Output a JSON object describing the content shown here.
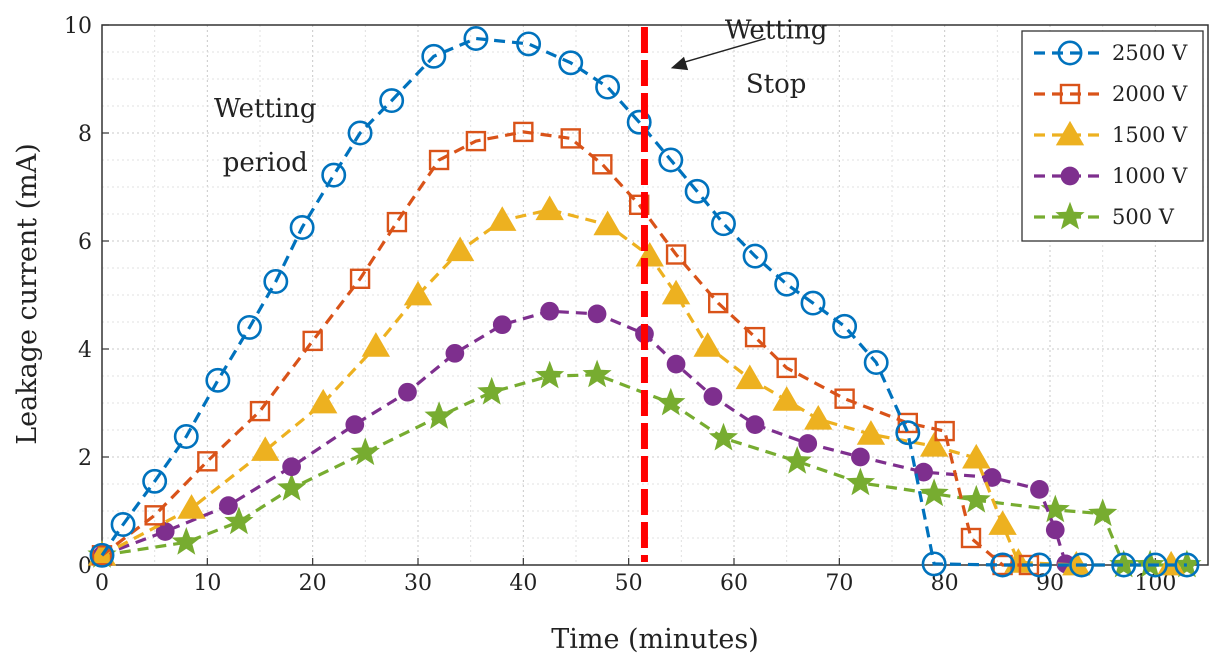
{
  "chart_data": {
    "type": "line",
    "xlabel": "Time (minutes)",
    "ylabel": "Leakage current (mA)",
    "xlim": [
      0,
      105
    ],
    "ylim": [
      0,
      10
    ],
    "xticks": [
      0,
      10,
      20,
      30,
      40,
      50,
      60,
      70,
      80,
      90,
      100
    ],
    "yticks": [
      0,
      2,
      4,
      6,
      8,
      10
    ],
    "grid": true,
    "legend_position": "top-right",
    "vertical_marker": {
      "x": 51.5,
      "color": "#ff0000",
      "style": "dashed"
    },
    "annotations": [
      {
        "id": "wetting",
        "text": "Wetting",
        "x": 15.5,
        "y": 8.3
      },
      {
        "id": "period",
        "text": "period",
        "x": 15.5,
        "y": 7.3
      },
      {
        "id": "wetting2",
        "text": "Wetting",
        "x": 64,
        "y": 9.75
      },
      {
        "id": "stop",
        "text": "Stop",
        "x": 64,
        "y": 8.75
      }
    ],
    "arrow": {
      "from": [
        63,
        9.75
      ],
      "to": [
        54,
        9.2
      ]
    },
    "series": [
      {
        "name": "2500 V",
        "color": "#0072BD",
        "marker": "circle-open",
        "x": [
          0,
          2,
          5,
          8,
          11,
          14,
          16.5,
          19,
          22,
          24.5,
          27.5,
          31.5,
          35.5,
          40.5,
          44.5,
          48,
          51,
          54,
          56.5,
          59,
          62,
          65,
          67.5,
          70.5,
          73.5,
          76.5,
          79,
          85.5,
          89,
          93,
          97,
          100,
          103
        ],
        "y": [
          0.18,
          0.75,
          1.55,
          2.38,
          3.42,
          4.4,
          5.25,
          6.25,
          7.22,
          8.0,
          8.6,
          9.42,
          9.75,
          9.65,
          9.3,
          8.85,
          8.2,
          7.5,
          6.92,
          6.32,
          5.72,
          5.2,
          4.85,
          4.42,
          3.75,
          2.45,
          0.02,
          0.0,
          0.0,
          0.0,
          0.0,
          0.0,
          0.0
        ]
      },
      {
        "name": "2000 V",
        "color": "#D95319",
        "marker": "square-open",
        "x": [
          0,
          5,
          10,
          15,
          20,
          24.5,
          28,
          32,
          35.5,
          40,
          44.5,
          47.5,
          51,
          54.5,
          58.5,
          62,
          65,
          70.5,
          76.5,
          80,
          82.5,
          85.5,
          88
        ],
        "y": [
          0.18,
          0.92,
          1.92,
          2.85,
          4.15,
          5.3,
          6.35,
          7.5,
          7.85,
          8.02,
          7.9,
          7.42,
          6.67,
          5.75,
          4.85,
          4.22,
          3.65,
          3.08,
          2.63,
          2.48,
          0.5,
          0.0,
          0.0
        ]
      },
      {
        "name": "1500 V",
        "color": "#EDB120",
        "marker": "triangle",
        "x": [
          0,
          8.5,
          15.5,
          21,
          26,
          30,
          34,
          38,
          42.5,
          48,
          52,
          54.5,
          57.5,
          61.5,
          65,
          68,
          73,
          79,
          83,
          85.5,
          87,
          92.5,
          101.5
        ],
        "y": [
          0.18,
          1.05,
          2.12,
          3.0,
          4.05,
          5.0,
          5.82,
          6.38,
          6.58,
          6.3,
          5.72,
          5.02,
          4.05,
          3.45,
          3.05,
          2.7,
          2.42,
          2.2,
          1.98,
          0.75,
          0.05,
          0.0,
          0.0
        ]
      },
      {
        "name": "1000 V",
        "color": "#7E2F8E",
        "marker": "circle-filled",
        "x": [
          0,
          6,
          12,
          18,
          24,
          29,
          33.5,
          38,
          42.5,
          47,
          51.5,
          54.5,
          58,
          62,
          67,
          72,
          78,
          84.5,
          89,
          90.5,
          91.5
        ],
        "y": [
          0.18,
          0.62,
          1.1,
          1.82,
          2.6,
          3.2,
          3.92,
          4.45,
          4.7,
          4.65,
          4.28,
          3.72,
          3.12,
          2.6,
          2.25,
          2.0,
          1.72,
          1.62,
          1.4,
          0.65,
          0.02
        ]
      },
      {
        "name": "500 V",
        "color": "#77AC30",
        "marker": "star",
        "x": [
          0,
          8,
          13,
          18,
          25,
          32,
          37,
          42.5,
          47,
          54,
          59,
          66,
          72,
          79,
          83,
          90.5,
          95,
          97,
          99.5,
          103
        ],
        "y": [
          0.18,
          0.42,
          0.8,
          1.42,
          2.08,
          2.75,
          3.2,
          3.5,
          3.52,
          3.0,
          2.35,
          1.92,
          1.52,
          1.32,
          1.2,
          1.02,
          0.95,
          0.0,
          0.0,
          0.0
        ]
      }
    ]
  }
}
